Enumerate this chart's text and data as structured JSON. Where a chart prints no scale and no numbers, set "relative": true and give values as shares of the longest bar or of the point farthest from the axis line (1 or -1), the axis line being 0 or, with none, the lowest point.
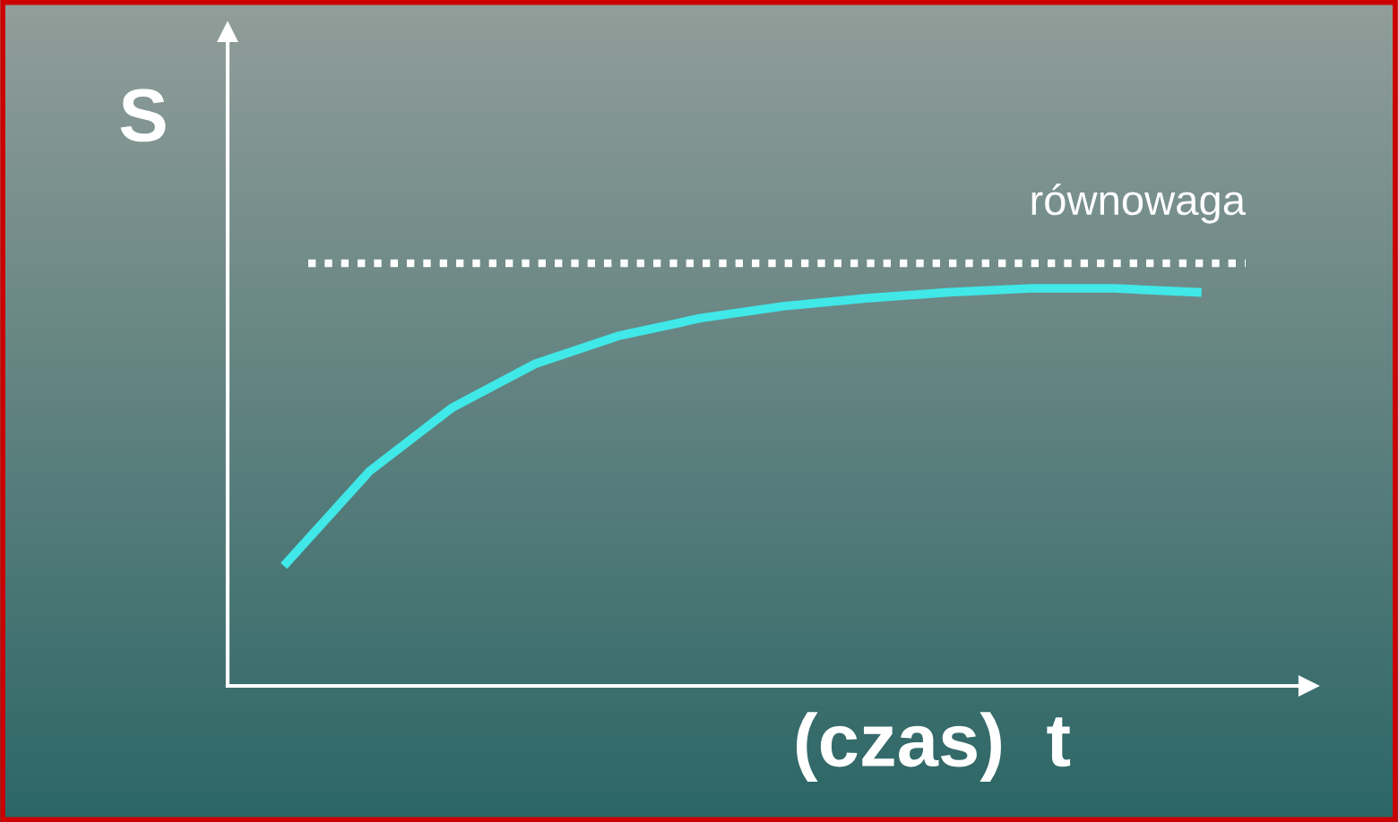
{
  "chart_data": {
    "type": "line",
    "relative": true,
    "xlabel": "(czas)  t",
    "ylabel": "S",
    "categories": [
      null,
      null,
      null,
      null,
      null,
      null,
      null,
      null,
      null,
      null,
      null,
      null
    ],
    "series": [
      {
        "color": "#40e8e8",
        "values": [
          0.31,
          0.54,
          0.7,
          0.81,
          0.88,
          0.925,
          0.955,
          0.975,
          0.99,
          1.0,
          1.0,
          0.99
        ]
      }
    ],
    "ref_lines": [
      {
        "axis": "y",
        "value": 1.063,
        "label": "równowaga",
        "color": "#ffffff",
        "line_style": "dotted"
      }
    ],
    "legend": false
  }
}
